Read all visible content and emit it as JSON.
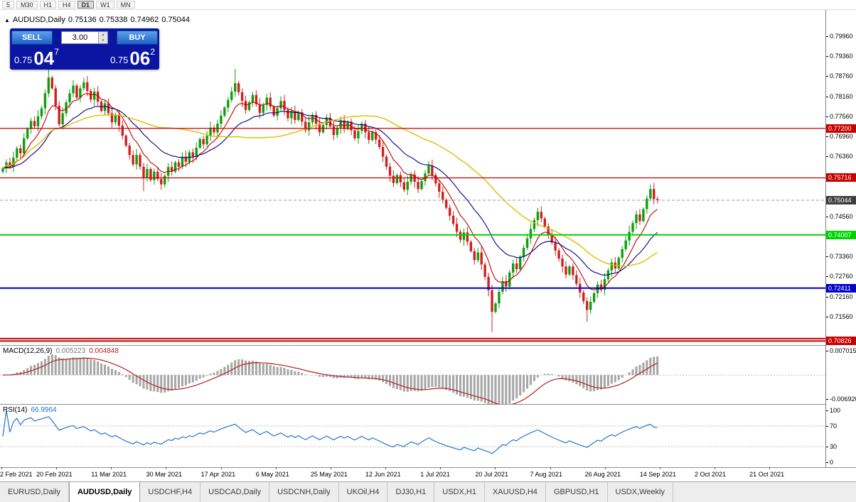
{
  "icons": {
    "symbol_marker": "▲",
    "spinner_up": "▴",
    "spinner_down": "▾"
  },
  "toolbar": {
    "periods": [
      {
        "label": "5",
        "active": false
      },
      {
        "label": "M30",
        "active": false
      },
      {
        "label": "H1",
        "active": false
      },
      {
        "label": "H4",
        "active": false
      },
      {
        "label": "D1",
        "active": true
      },
      {
        "label": "W1",
        "active": false
      },
      {
        "label": "MN",
        "active": false
      }
    ]
  },
  "chart_header": {
    "symbol": "AUDUSD,Daily",
    "open": "0.75136",
    "high": "0.75338",
    "low": "0.74962",
    "close": "0.75044"
  },
  "one_click": {
    "sell_label": "SELL",
    "buy_label": "BUY",
    "volume": "3.00",
    "sell_price": {
      "small": "0.75",
      "big": "04",
      "sup": "7"
    },
    "buy_price": {
      "small": "0.75",
      "big": "06",
      "sup": "2"
    }
  },
  "price_axis": {
    "labels": [
      "0.79960",
      "0.79360",
      "0.78760",
      "0.78160",
      "0.77560",
      "0.76960",
      "0.76360",
      "0.74560",
      "0.73360",
      "0.72760",
      "0.72160",
      "0.71560"
    ],
    "current_price": "0.75044"
  },
  "bid_line": {
    "price": 0.75044,
    "label_bg": "#3f3f3f"
  },
  "levels": [
    {
      "price": 0.772,
      "label": "0.77200",
      "color": "#c80000",
      "width": 1.3
    },
    {
      "price": 0.75716,
      "label": "0.75716",
      "color": "#c80000",
      "width": 1.3
    },
    {
      "price": 0.74007,
      "label": "0.74007",
      "color": "#00d400",
      "width": 2
    },
    {
      "price": 0.72411,
      "label": "0.72411",
      "color": "#0000c8",
      "width": 2
    },
    {
      "price": 0.709,
      "label": "",
      "color": "#c80000",
      "width": 2
    },
    {
      "price": 0.70826,
      "label": "0.70826",
      "color": "#c80000",
      "width": 2
    }
  ],
  "indicators": {
    "macd": {
      "name": "MACD(12,26,9)",
      "main_value": "0.005223",
      "signal_value": "0.004848",
      "axis_labels": [
        "0.007015",
        "-0.006920"
      ],
      "fast": 12,
      "slow": 26,
      "signal": 9,
      "hist_color": "#a6a6a6",
      "signal_color": "#b22222"
    },
    "rsi": {
      "name": "RSI(14)",
      "value": "66.9964",
      "axis_labels": [
        "100",
        "70",
        "30",
        "0"
      ],
      "upper_level": 70,
      "lower_level": 30,
      "period": 14,
      "line_color": "#2277cc"
    }
  },
  "time_axis": {
    "labels": [
      "2 Feb 2021",
      "20 Feb 2021",
      "11 Mar 2021",
      "30 Mar 2021",
      "17 Apr 2021",
      "6 May 2021",
      "25 May 2021",
      "12 Jun 2021",
      "1 Jul 2021",
      "20 Jul 2021",
      "7 Aug 2021",
      "26 Aug 2021",
      "14 Sep 2021",
      "2 Oct 2021",
      "21 Oct 2021"
    ]
  },
  "tabs": [
    {
      "label": "EURUSD,Daily",
      "active": false
    },
    {
      "label": "AUDUSD,Daily",
      "active": true
    },
    {
      "label": "USDCHF,H4",
      "active": false
    },
    {
      "label": "USDCAD,Daily",
      "active": false
    },
    {
      "label": "USDCNH,Daily",
      "active": false
    },
    {
      "label": "UKOil,H4",
      "active": false
    },
    {
      "label": "DJ30,H1",
      "active": false
    },
    {
      "label": "USDX,H1",
      "active": false
    },
    {
      "label": "XAUUSD,H4",
      "active": false
    },
    {
      "label": "GBPUSD,H1",
      "active": false
    },
    {
      "label": "USDX,Weekly",
      "active": false
    }
  ],
  "chart_data": {
    "type": "candlestick",
    "symbol": "AUDUSD",
    "timeframe": "D1",
    "last_ohlc": {
      "open": 0.75136,
      "high": 0.75338,
      "low": 0.74962,
      "close": 0.75044
    },
    "y_axis_range": [
      0.705,
      0.801
    ],
    "up_color": "#0e9e0e",
    "down_color": "#d02020",
    "closes": [
      0.76,
      0.7618,
      0.7605,
      0.7632,
      0.766,
      0.7645,
      0.769,
      0.7718,
      0.7742,
      0.7726,
      0.7756,
      0.778,
      0.7825,
      0.7872,
      0.784,
      0.7788,
      0.7732,
      0.7765,
      0.7798,
      0.7825,
      0.7848,
      0.7812,
      0.784,
      0.7858,
      0.7832,
      0.7806,
      0.783,
      0.78,
      0.7772,
      0.7795,
      0.7765,
      0.7738,
      0.776,
      0.7728,
      0.7698,
      0.7668,
      0.764,
      0.7612,
      0.764,
      0.7605,
      0.7572,
      0.7598,
      0.7565,
      0.759,
      0.7568,
      0.7552,
      0.7578,
      0.7604,
      0.759,
      0.7618,
      0.7605,
      0.7635,
      0.762,
      0.7648,
      0.7635,
      0.7662,
      0.7688,
      0.7672,
      0.7698,
      0.7722,
      0.7708,
      0.7734,
      0.7758,
      0.7782,
      0.7805,
      0.783,
      0.7855,
      0.7828,
      0.7802,
      0.7775,
      0.7798,
      0.782,
      0.7792,
      0.7766,
      0.779,
      0.7812,
      0.7785,
      0.7758,
      0.778,
      0.7802,
      0.7775,
      0.775,
      0.7772,
      0.7745,
      0.7768,
      0.774,
      0.7714,
      0.7738,
      0.776,
      0.7734,
      0.7708,
      0.773,
      0.7752,
      0.7726,
      0.77,
      0.7722,
      0.7744,
      0.7718,
      0.774,
      0.7714,
      0.769,
      0.7712,
      0.7734,
      0.7708,
      0.7685,
      0.7708,
      0.7686,
      0.7664,
      0.7635,
      0.7605,
      0.7578,
      0.7556,
      0.758,
      0.7558,
      0.7536,
      0.756,
      0.7582,
      0.756,
      0.7538,
      0.7562,
      0.7585,
      0.7608,
      0.758,
      0.7555,
      0.753,
      0.7506,
      0.7482,
      0.7458,
      0.7434,
      0.741,
      0.7386,
      0.7408,
      0.738,
      0.7352,
      0.7325,
      0.7348,
      0.7312,
      0.7275,
      0.7235,
      0.717,
      0.7195,
      0.723,
      0.7262,
      0.7246,
      0.7288,
      0.7315,
      0.7298,
      0.7335,
      0.7362,
      0.739,
      0.7418,
      0.7445,
      0.747,
      0.745,
      0.7426,
      0.7402,
      0.7378,
      0.7354,
      0.733,
      0.7306,
      0.7282,
      0.7306,
      0.728,
      0.7254,
      0.7228,
      0.7202,
      0.7176,
      0.72,
      0.7226,
      0.7252,
      0.7236,
      0.7268,
      0.7294,
      0.7318,
      0.73,
      0.7332,
      0.7358,
      0.7384,
      0.741,
      0.7436,
      0.7462,
      0.7442,
      0.7478,
      0.751,
      0.7538,
      0.7508,
      0.75044
    ],
    "special_wicks": {
      "13": {
        "high": 0.7905
      },
      "40": {
        "low": 0.7532
      },
      "66": {
        "high": 0.7898
      },
      "139": {
        "low": 0.711
      },
      "166": {
        "low": 0.714
      }
    },
    "moving_averages": [
      {
        "type": "ema",
        "period": 8,
        "color": "#c00000"
      },
      {
        "type": "ema",
        "period": 21,
        "color": "#000080"
      },
      {
        "type": "sma",
        "period": 45,
        "color": "#e2bb00"
      }
    ],
    "support_resistance": [
      0.772,
      0.75716,
      0.74007,
      0.72411,
      0.709,
      0.70826
    ]
  }
}
